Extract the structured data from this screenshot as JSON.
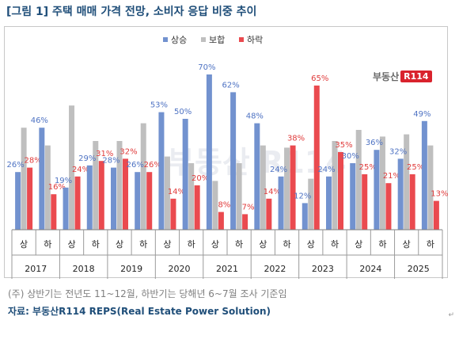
{
  "title": "[그림 1] 주택 매매 가격 전망, 소비자 응답 비중 추이",
  "note": "(주) 상반기는 전년도 11~12월, 하반기는 당해년 6~7월 조사 기준임",
  "source": "자료: 부동산R114 REPS(Real Estate Power Solution)",
  "logo": {
    "text": "부동산",
    "badge": "R114"
  },
  "watermark": "부동산 R114",
  "corner_mark": "↵",
  "colors": {
    "up": "#7292cf",
    "hold": "#bfbfbf",
    "down": "#ea4a4f",
    "up_label": "#4f73c3",
    "down_label": "#e03c3c",
    "hold_label": "#666666"
  },
  "chart_data": {
    "type": "bar",
    "title": "",
    "xlabel": "",
    "ylabel": "",
    "ylim": [
      0,
      75
    ],
    "grid": false,
    "legend_position": "top-center",
    "unit": "%",
    "years": [
      "2017",
      "2018",
      "2019",
      "2020",
      "2021",
      "2022",
      "2023",
      "2024",
      "2025"
    ],
    "categories": [
      "상",
      "하",
      "상",
      "하",
      "상",
      "하",
      "상",
      "하",
      "상",
      "하",
      "상",
      "하",
      "상",
      "하",
      "상",
      "하",
      "상",
      "하"
    ],
    "series": [
      {
        "name": "상승",
        "values": [
          26,
          46,
          19,
          29,
          28,
          26,
          53,
          50,
          70,
          62,
          48,
          24,
          12,
          24,
          30,
          36,
          32,
          49
        ]
      },
      {
        "name": "보합",
        "values": [
          46,
          38,
          56,
          40,
          40,
          48,
          33,
          30,
          22,
          30,
          38,
          37,
          23,
          40,
          45,
          42,
          43,
          38
        ]
      },
      {
        "name": "하락",
        "values": [
          28,
          16,
          24,
          31,
          32,
          26,
          14,
          20,
          8,
          7,
          14,
          38,
          65,
          35,
          25,
          21,
          25,
          13
        ]
      }
    ],
    "data_labels": {
      "상승": [
        "26%",
        "46%",
        "19%",
        "29%",
        "28%",
        "26%",
        "53%",
        "50%",
        "70%",
        "62%",
        "48%",
        "24%",
        "12%",
        "24%",
        "30%",
        "36%",
        "32%",
        "49%"
      ],
      "하락": [
        "28%",
        "16%",
        "24%",
        "31%",
        "32%",
        "26%",
        "14%",
        "20%",
        "8%",
        "7%",
        "14%",
        "38%",
        "65%",
        "35%",
        "25%",
        "21%",
        "25%",
        "13%"
      ]
    }
  }
}
